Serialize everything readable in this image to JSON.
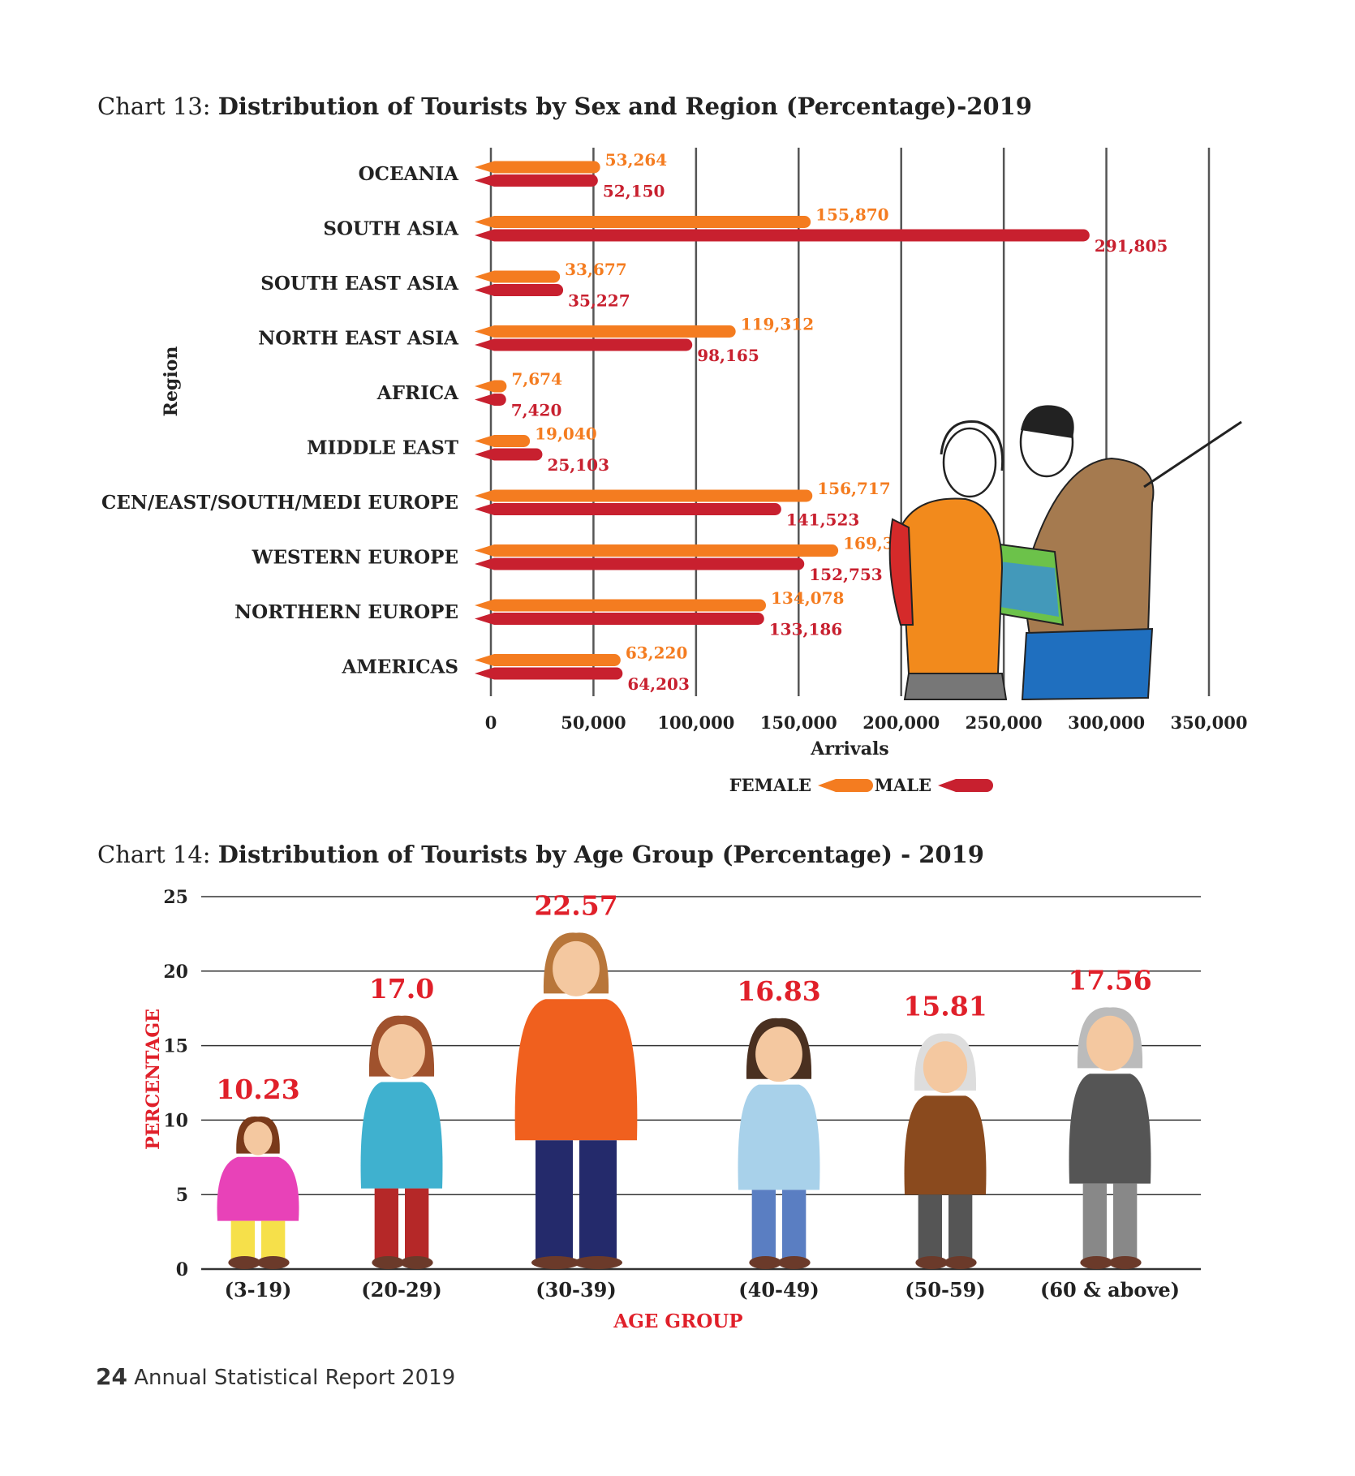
{
  "chart_data": [
    {
      "type": "bar",
      "orientation": "horizontal",
      "title_prefix": "Chart 13:",
      "title": "Distribution of Tourists by Sex and Region (Percentage)-2019",
      "xlabel": "Arrivals",
      "ylabel": "Region",
      "xlim": [
        0,
        350000
      ],
      "xticks": [
        "0",
        "50,000",
        "100,000",
        "150,000",
        "200,000",
        "250,000",
        "300,000",
        "350,000"
      ],
      "categories": [
        "OCEANIA",
        "SOUTH ASIA",
        "SOUTH EAST ASIA",
        "NORTH EAST ASIA",
        "AFRICA",
        "MIDDLE EAST",
        "CEN/EAST/SOUTH/MEDI EUROPE",
        "WESTERN EUROPE",
        "NORTHERN EUROPE",
        "AMERICAS"
      ],
      "series": [
        {
          "name": "FEMALE",
          "color": "#f47c20",
          "values": [
            53264,
            155870,
            33677,
            119312,
            7674,
            19040,
            156717,
            169315,
            134078,
            63220
          ],
          "labels": [
            "53,264",
            "155,870",
            "33,677",
            "119,312",
            "7,674",
            "19,040",
            "156,717",
            "169,315",
            "134,078",
            "63,220"
          ]
        },
        {
          "name": "MALE",
          "color": "#c8202f",
          "values": [
            52150,
            291805,
            35227,
            98165,
            7420,
            25103,
            141523,
            152753,
            133186,
            64203
          ],
          "labels": [
            "52,150",
            "291,805",
            "35,227",
            "98,165",
            "7,420",
            "25,103",
            "141,523",
            "152,753",
            "133,186",
            "64,203"
          ]
        }
      ],
      "grid": true,
      "legend_position": "bottom"
    },
    {
      "type": "bar",
      "title_prefix": "Chart 14:",
      "title": "Distribution of Tourists by Age Group (Percentage) - 2019",
      "xlabel": "AGE GROUP",
      "ylabel": "PERCENTAGE",
      "ylim": [
        0,
        25
      ],
      "yticks": [
        "0",
        "5",
        "10",
        "15",
        "20",
        "25"
      ],
      "categories": [
        "(3-19)",
        "(20-29)",
        "(30-39)",
        "(40-49)",
        "(50-59)",
        "(60 & above)"
      ],
      "values": [
        10.23,
        17.0,
        22.57,
        16.83,
        15.81,
        17.56
      ],
      "labels": [
        "10.23",
        "17.0",
        "22.57",
        "16.83",
        "15.81",
        "17.56"
      ],
      "label_color": "#e0202a",
      "grid": true
    }
  ],
  "footer": {
    "page_number": "24",
    "text": "Annual Statistical Report 2019"
  }
}
